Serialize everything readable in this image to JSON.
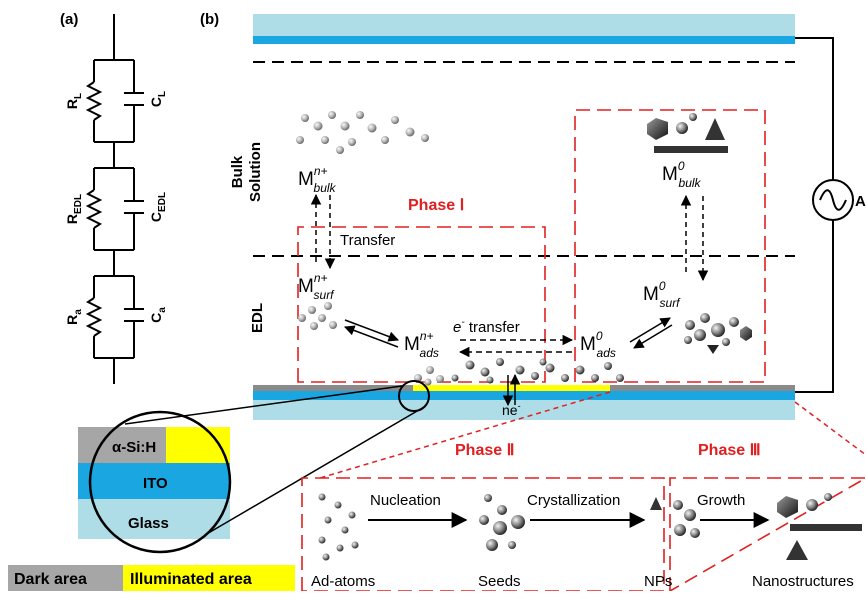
{
  "panel_a": {
    "label": "(a)",
    "R1": {
      "main": "R",
      "sub": "L"
    },
    "C1": {
      "main": "C",
      "sub": "L"
    },
    "R2": {
      "main": "R",
      "sub": "EDL"
    },
    "C2": {
      "main": "C",
      "sub": "EDL"
    },
    "R3": {
      "main": "R",
      "sub": "a"
    },
    "C3": {
      "main": "C",
      "sub": "a"
    }
  },
  "panel_b": {
    "label": "(b)",
    "ac": "AC",
    "bulk_solution": [
      "Bulk",
      "Solution"
    ],
    "edl": "EDL",
    "phase1": "Phase Ⅰ",
    "phase2": "Phase Ⅱ",
    "phase3": "Phase Ⅲ",
    "transfer": "Transfer",
    "e_transfer_pre": "e",
    "e_transfer_sup": "-",
    "e_transfer_post": " transfer",
    "ne": "ne",
    "ne_sup": "-",
    "species": {
      "bulk_ion": {
        "base": "M",
        "sup": "n+",
        "sub": "bulk"
      },
      "surf_ion": {
        "base": "M",
        "sup": "n+",
        "sub": "surf"
      },
      "ads_ion": {
        "base": "M",
        "sup": "n+",
        "sub": "ads"
      },
      "ads_atom": {
        "base": "M",
        "sup": "0",
        "sub": "ads"
      },
      "surf_atom": {
        "base": "M",
        "sup": "0",
        "sub": "surf"
      },
      "bulk_atom": {
        "base": "M",
        "sup": "0",
        "sub": "bulk"
      }
    }
  },
  "layers": {
    "a_si": "α-Si:H",
    "ito": "ITO",
    "glass": "Glass"
  },
  "legend": {
    "dark": "Dark area",
    "illuminated": "Illuminated area"
  },
  "process": {
    "nucleation": "Nucleation",
    "crystallization": "Crystallization",
    "growth": "Growth",
    "ad_atoms": "Ad-atoms",
    "seeds": "Seeds",
    "nps": "NPs",
    "nanostructures": "Nanostructures"
  },
  "colors": {
    "glass": "#aedde8",
    "ito": "#1aa6e0",
    "a_si": "#9a9a9a",
    "illuminated": "#ffff00",
    "phase_border": "#e02020",
    "phase_text": "#e02020"
  }
}
